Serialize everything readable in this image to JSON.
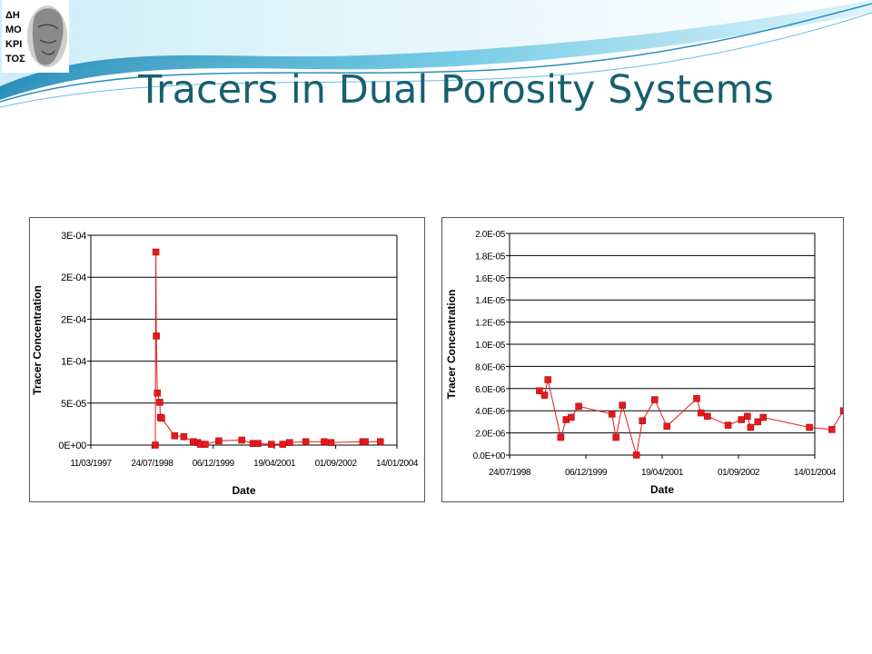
{
  "slide": {
    "title": "Tracers in Dual Porosity Systems",
    "logo_text": "ΔΗΜΟΚΡΙΤΟΣ",
    "accent_color": "#17606e"
  },
  "chart_data": [
    {
      "type": "scatter",
      "xlabel": "Date",
      "ylabel": "Tracer Concentration",
      "x_ticks": [
        "11/03/1997",
        "24/07/1998",
        "06/12/1999",
        "19/04/2001",
        "01/09/2002",
        "14/01/2004"
      ],
      "xlim": [
        "11/03/1997",
        "14/01/2004"
      ],
      "y_ticks": [
        "0E+00",
        "5E-05",
        "1E-04",
        "2E-04",
        "2E-04",
        "3E-04"
      ],
      "ylim": [
        0,
        0.00025
      ],
      "grid": "horizontal",
      "legend": "none",
      "series": [
        {
          "color": "#e31a1c",
          "points": [
            [
              "1998-08-20",
              0.0
            ],
            [
              "1998-08-24",
              0.00023
            ],
            [
              "1998-08-28",
              0.00013
            ],
            [
              "1998-09-05",
              6.2e-05
            ],
            [
              "1998-09-25",
              5.1e-05
            ],
            [
              "1998-09-30",
              3.3e-05
            ],
            [
              "1998-10-10",
              3.2e-05
            ],
            [
              "1999-01-25",
              1.1e-05
            ],
            [
              "1999-04-10",
              1e-05
            ],
            [
              "1999-06-25",
              4e-06
            ],
            [
              "1999-08-01",
              3e-06
            ],
            [
              "1999-08-25",
              1e-06
            ],
            [
              "1999-10-01",
              1e-06
            ],
            [
              "2000-01-20",
              5e-06
            ],
            [
              "2000-07-25",
              6e-06
            ],
            [
              "2000-10-25",
              2e-06
            ],
            [
              "2000-12-05",
              2e-06
            ],
            [
              "2001-03-25",
              1e-06
            ],
            [
              "2001-06-25",
              1e-06
            ],
            [
              "2001-08-20",
              3e-06
            ],
            [
              "2001-12-30",
              4e-06
            ],
            [
              "2002-05-30",
              4e-06
            ],
            [
              "2002-07-25",
              3e-06
            ],
            [
              "2003-04-10",
              4e-06
            ],
            [
              "2003-04-30",
              4e-06
            ],
            [
              "2003-09-01",
              4e-06
            ]
          ]
        }
      ]
    },
    {
      "type": "scatter",
      "xlabel": "Date",
      "ylabel": "Tracer Concentration",
      "x_ticks": [
        "24/07/1998",
        "06/12/1999",
        "19/04/2001",
        "01/09/2002",
        "14/01/2004"
      ],
      "xlim": [
        "24/07/1998",
        "14/01/2004"
      ],
      "y_ticks": [
        "0.0E+00",
        "2.0E-06",
        "4.0E-06",
        "6.0E-06",
        "8.0E-06",
        "1.0E-05",
        "1.2E-05",
        "1.4E-05",
        "1.6E-05",
        "1.8E-05",
        "2.0E-05"
      ],
      "ylim": [
        0,
        2e-05
      ],
      "grid": "horizontal",
      "legend": "none",
      "series": [
        {
          "color": "#e31a1c",
          "points": [
            [
              "1999-02-05",
              5.8e-06
            ],
            [
              "1999-03-10",
              5.4e-06
            ],
            [
              "1999-04-01",
              6.8e-06
            ],
            [
              "1999-06-25",
              1.6e-06
            ],
            [
              "1999-07-30",
              3.2e-06
            ],
            [
              "1999-09-01",
              3.4e-06
            ],
            [
              "1999-10-20",
              4.4e-06
            ],
            [
              "2000-05-25",
              3.7e-06
            ],
            [
              "2000-06-20",
              1.6e-06
            ],
            [
              "2000-08-01",
              4.5e-06
            ],
            [
              "2000-11-01",
              0.0
            ],
            [
              "2000-12-10",
              3.1e-06
            ],
            [
              "2001-03-01",
              5e-06
            ],
            [
              "2001-05-20",
              2.6e-06
            ],
            [
              "2001-12-01",
              5.1e-06
            ],
            [
              "2001-12-30",
              3.8e-06
            ],
            [
              "2002-02-10",
              3.5e-06
            ],
            [
              "2002-06-25",
              2.7e-06
            ],
            [
              "2002-09-20",
              3.2e-06
            ],
            [
              "2002-10-30",
              3.5e-06
            ],
            [
              "2002-11-20",
              2.5e-06
            ],
            [
              "2003-01-05",
              3e-06
            ],
            [
              "2003-02-10",
              3.4e-06
            ],
            [
              "2003-12-10",
              2.5e-06
            ],
            [
              "2004-05-05",
              2.3e-06
            ],
            [
              "2004-07-20",
              4e-06
            ]
          ]
        }
      ]
    }
  ]
}
